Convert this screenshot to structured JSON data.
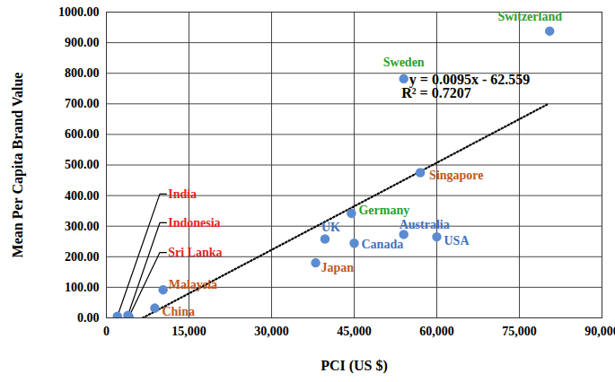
{
  "chart_data": {
    "type": "scatter",
    "x_label": "PCI (US $)",
    "y_label": "Mean Per Capita Brand Value",
    "labels": [
      "India",
      "Indonesia",
      "Sri Lanka",
      "China",
      "Malaysia",
      "Japan",
      "UK",
      "Canada",
      "Germany",
      "Australia",
      "USA",
      "Singapore",
      "Sweden",
      "Switzerland"
    ],
    "x": [
      2000,
      3900,
      4100,
      8800,
      10300,
      38000,
      39700,
      45000,
      44500,
      54000,
      60000,
      57000,
      54000,
      80500
    ],
    "values": [
      5,
      8,
      4,
      32,
      92,
      180,
      258,
      244,
      342,
      273,
      265,
      475,
      782,
      938
    ],
    "label_colors": [
      "#e8251f",
      "#e8251f",
      "#e8251f",
      "#c0581c",
      "#c0581c",
      "#c0581c",
      "#3f72c0",
      "#3f72c0",
      "#2ca02c",
      "#3f72c0",
      "#3f72c0",
      "#c0581c",
      "#2ca02c",
      "#2ca02c"
    ],
    "color": "#5b8bd0",
    "marker": "circle",
    "trendline": {
      "x": [
        6590,
        80000
      ],
      "slope": 0.0095,
      "intercept": -62.559,
      "line_style": "dotted",
      "equation": "y = 0.0095x - 62.559",
      "r_squared": 0.7207,
      "r_squared_label": "R² = 0.7207"
    },
    "xlim": [
      0,
      90000
    ],
    "xticks": [
      0,
      {
        "value": 15000,
        "label": "15,000"
      },
      {
        "value": 30000,
        "label": "30,000"
      },
      {
        "value": 45000,
        "label": "45,000"
      },
      {
        "value": 60000,
        "label": "60,000"
      },
      {
        "value": 75000,
        "label": "75,000"
      },
      {
        "value": 90000,
        "label": "90,000"
      }
    ],
    "ylim": [
      0,
      1000
    ],
    "yticks": [
      {
        "value": 0,
        "label": "0.00"
      },
      {
        "value": 100,
        "label": "100.00"
      },
      {
        "value": 200,
        "label": "200.00"
      },
      {
        "value": 300,
        "label": "300.00"
      },
      {
        "value": 400,
        "label": "400.00"
      },
      {
        "value": 500,
        "label": "500.00"
      },
      {
        "value": 600,
        "label": "600.00"
      },
      {
        "value": 700,
        "label": "700.00"
      },
      {
        "value": 800,
        "label": "800.00"
      },
      {
        "value": 900,
        "label": "900.00"
      },
      {
        "value": 1000,
        "label": "1000.00"
      }
    ],
    "grid": true
  }
}
